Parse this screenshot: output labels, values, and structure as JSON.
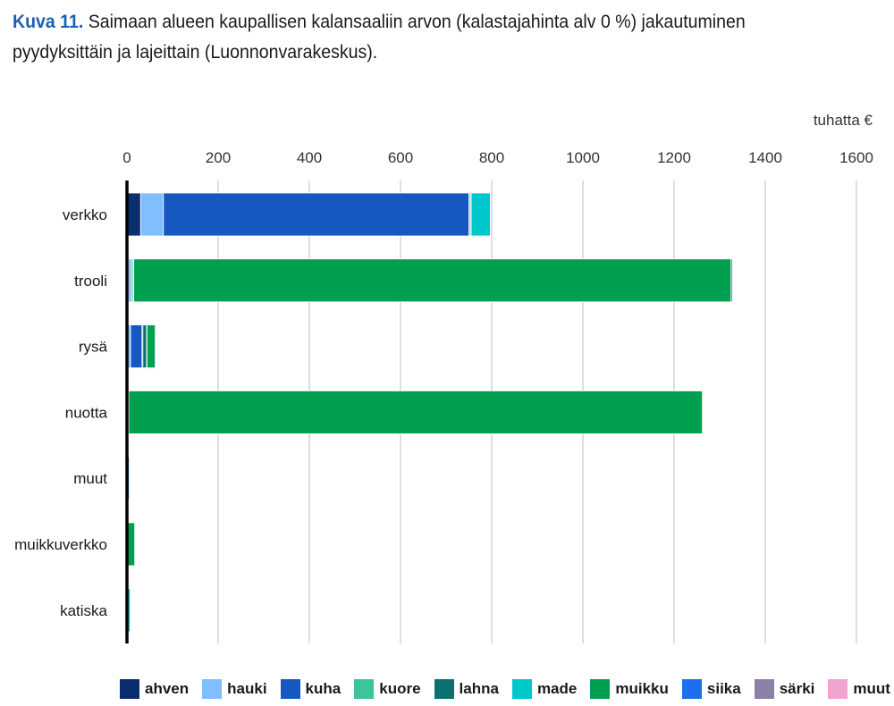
{
  "title": {
    "prefix": "Kuva 11.",
    "text": "Saimaan alueen kaupallisen kalansaaliin arvon (kalastajahinta alv 0 %) jakautuminen pyydyksittäin ja lajeittain (Luonnonvarakeskus)."
  },
  "chart_data": {
    "type": "bar",
    "orientation": "horizontal",
    "stacked": true,
    "unit": "tuhatta €",
    "xlim": [
      0,
      1600
    ],
    "ticks": [
      0,
      200,
      400,
      600,
      800,
      1000,
      1200,
      1400,
      1600
    ],
    "grid": true,
    "legend_position": "bottom",
    "categories": [
      "verkko",
      "trooli",
      "rysä",
      "nuotta",
      "muut",
      "muikkuverkko",
      "katiska"
    ],
    "series": [
      {
        "name": "ahven",
        "color": "#0a2d6e",
        "values": [
          30,
          3,
          2,
          0,
          0,
          0,
          0
        ]
      },
      {
        "name": "hauki",
        "color": "#7fbfff",
        "values": [
          50,
          5,
          6,
          3,
          2,
          0,
          1
        ]
      },
      {
        "name": "kuha",
        "color": "#1558c0",
        "values": [
          670,
          3,
          25,
          0,
          3,
          0,
          0
        ]
      },
      {
        "name": "kuore",
        "color": "#3cc49a",
        "values": [
          3,
          3,
          2,
          1,
          0,
          0,
          0
        ]
      },
      {
        "name": "lahna",
        "color": "#0a7070",
        "values": [
          2,
          1,
          8,
          0,
          0,
          0,
          0
        ]
      },
      {
        "name": "made",
        "color": "#00c7cc",
        "values": [
          42,
          0,
          1,
          0,
          0,
          0,
          6
        ]
      },
      {
        "name": "muikku",
        "color": "#00a050",
        "values": [
          0,
          1310,
          18,
          1258,
          0,
          17,
          0
        ]
      },
      {
        "name": "siika",
        "color": "#1e6ff0",
        "values": [
          0,
          3,
          0,
          0,
          0,
          0,
          0
        ]
      },
      {
        "name": "särki",
        "color": "#8d80a6",
        "values": [
          0,
          0,
          0,
          0,
          0,
          0,
          0
        ]
      },
      {
        "name": "muut",
        "color": "#f2a3cf",
        "values": [
          0,
          0,
          0,
          0,
          0,
          0,
          0
        ]
      }
    ]
  }
}
